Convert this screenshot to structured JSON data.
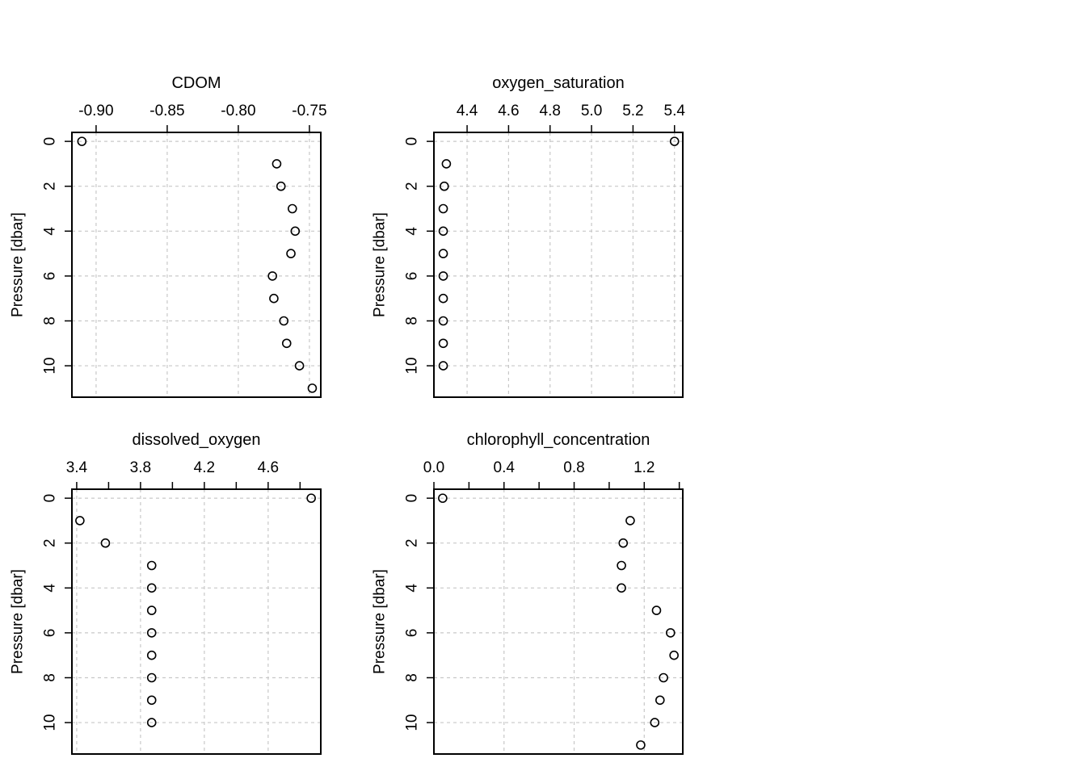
{
  "chart_data": [
    {
      "type": "scatter",
      "title": "CDOM",
      "xlabel": "",
      "ylabel": "Pressure [dbar]",
      "x_axis_position": "top",
      "y_reversed": true,
      "xlim": [
        -0.917,
        -0.742
      ],
      "ylim": [
        0,
        11
      ],
      "x_ticks": [
        -0.9,
        -0.85,
        -0.8,
        -0.75
      ],
      "x_tick_labels": [
        "-0.90",
        "-0.85",
        "-0.80",
        "-0.75"
      ],
      "y_ticks": [
        0,
        2,
        4,
        6,
        8,
        10
      ],
      "y_tick_labels": [
        "0",
        "2",
        "4",
        "6",
        "8",
        "10"
      ],
      "grid": true,
      "points": [
        {
          "x": -0.91,
          "y": 0
        },
        {
          "x": -0.773,
          "y": 1
        },
        {
          "x": -0.77,
          "y": 2
        },
        {
          "x": -0.762,
          "y": 3
        },
        {
          "x": -0.76,
          "y": 4
        },
        {
          "x": -0.763,
          "y": 5
        },
        {
          "x": -0.776,
          "y": 6
        },
        {
          "x": -0.775,
          "y": 7
        },
        {
          "x": -0.768,
          "y": 8
        },
        {
          "x": -0.766,
          "y": 9
        },
        {
          "x": -0.757,
          "y": 10
        },
        {
          "x": -0.748,
          "y": 11
        }
      ]
    },
    {
      "type": "scatter",
      "title": "oxygen_saturation",
      "xlabel": "",
      "ylabel": "Pressure [dbar]",
      "x_axis_position": "top",
      "y_reversed": true,
      "xlim": [
        4.24,
        5.44
      ],
      "ylim": [
        0,
        11
      ],
      "x_ticks": [
        4.4,
        4.6,
        4.8,
        5.0,
        5.2,
        5.4
      ],
      "x_tick_labels": [
        "4.4",
        "4.6",
        "4.8",
        "5.0",
        "5.2",
        "5.4"
      ],
      "y_ticks": [
        0,
        2,
        4,
        6,
        8,
        10
      ],
      "y_tick_labels": [
        "0",
        "2",
        "4",
        "6",
        "8",
        "10"
      ],
      "grid": true,
      "points": [
        {
          "x": 5.4,
          "y": 0
        },
        {
          "x": 4.3,
          "y": 1
        },
        {
          "x": 4.29,
          "y": 2
        },
        {
          "x": 4.285,
          "y": 3
        },
        {
          "x": 4.285,
          "y": 4
        },
        {
          "x": 4.285,
          "y": 5
        },
        {
          "x": 4.285,
          "y": 6
        },
        {
          "x": 4.285,
          "y": 7
        },
        {
          "x": 4.285,
          "y": 8
        },
        {
          "x": 4.285,
          "y": 9
        },
        {
          "x": 4.285,
          "y": 10
        }
      ]
    },
    {
      "type": "scatter",
      "title": "dissolved_oxygen",
      "xlabel": "",
      "ylabel": "Pressure [dbar]",
      "x_axis_position": "top",
      "y_reversed": true,
      "xlim": [
        3.37,
        4.93
      ],
      "ylim": [
        0,
        11
      ],
      "x_ticks": [
        3.4,
        3.6,
        3.8,
        4.0,
        4.2,
        4.4,
        4.6,
        4.8
      ],
      "x_tick_labels": [
        "3.4",
        "",
        "3.8",
        "",
        "4.2",
        "",
        "4.6",
        ""
      ],
      "y_ticks": [
        0,
        2,
        4,
        6,
        8,
        10
      ],
      "y_tick_labels": [
        "0",
        "2",
        "4",
        "6",
        "8",
        "10"
      ],
      "grid": true,
      "points": [
        {
          "x": 4.87,
          "y": 0
        },
        {
          "x": 3.42,
          "y": 1
        },
        {
          "x": 3.58,
          "y": 2
        },
        {
          "x": 3.87,
          "y": 3
        },
        {
          "x": 3.87,
          "y": 4
        },
        {
          "x": 3.87,
          "y": 5
        },
        {
          "x": 3.87,
          "y": 6
        },
        {
          "x": 3.87,
          "y": 7
        },
        {
          "x": 3.87,
          "y": 8
        },
        {
          "x": 3.87,
          "y": 9
        },
        {
          "x": 3.87,
          "y": 10
        }
      ]
    },
    {
      "type": "scatter",
      "title": "chlorophyll_concentration",
      "xlabel": "",
      "ylabel": "Pressure [dbar]",
      "x_axis_position": "top",
      "y_reversed": true,
      "xlim": [
        0.0,
        1.42
      ],
      "ylim": [
        0,
        11
      ],
      "x_ticks": [
        0.0,
        0.2,
        0.4,
        0.6,
        0.8,
        1.0,
        1.2,
        1.4
      ],
      "x_tick_labels": [
        "0.0",
        "",
        "0.4",
        "",
        "0.8",
        "",
        "1.2",
        ""
      ],
      "y_ticks": [
        0,
        2,
        4,
        6,
        8,
        10
      ],
      "y_tick_labels": [
        "0",
        "2",
        "4",
        "6",
        "8",
        "10"
      ],
      "grid": true,
      "points": [
        {
          "x": 0.05,
          "y": 0
        },
        {
          "x": 1.12,
          "y": 1
        },
        {
          "x": 1.08,
          "y": 2
        },
        {
          "x": 1.07,
          "y": 3
        },
        {
          "x": 1.07,
          "y": 4
        },
        {
          "x": 1.27,
          "y": 5
        },
        {
          "x": 1.35,
          "y": 6
        },
        {
          "x": 1.37,
          "y": 7
        },
        {
          "x": 1.31,
          "y": 8
        },
        {
          "x": 1.29,
          "y": 9
        },
        {
          "x": 1.26,
          "y": 10
        },
        {
          "x": 1.18,
          "y": 11
        }
      ]
    }
  ]
}
